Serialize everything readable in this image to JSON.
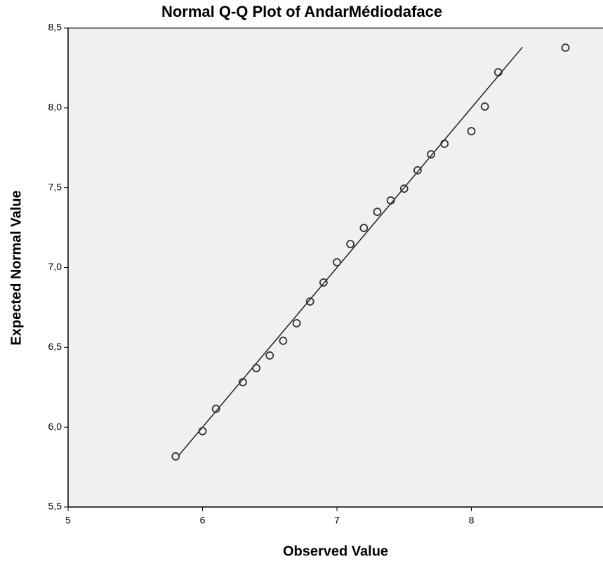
{
  "chart_data": {
    "type": "scatter",
    "title": "Normal Q-Q Plot of AndarMédiodaface",
    "x_label": "Observed Value",
    "y_label": "Expected Normal Value",
    "x": [
      5.8,
      6.0,
      6.1,
      6.3,
      6.4,
      6.5,
      6.6,
      6.7,
      6.8,
      6.9,
      7.0,
      7.1,
      7.2,
      7.3,
      7.4,
      7.5,
      7.6,
      7.7,
      7.8,
      8.0,
      8.1,
      8.2,
      8.7
    ],
    "values": [
      5.817,
      5.975,
      6.115,
      6.282,
      6.37,
      6.449,
      6.541,
      6.651,
      6.787,
      6.906,
      7.033,
      7.147,
      7.248,
      7.349,
      7.42,
      7.494,
      7.609,
      7.709,
      7.775,
      7.854,
      8.008,
      8.223,
      8.377
    ],
    "color": "#333333",
    "reference_line": {
      "x": [
        5.82,
        8.38
      ],
      "y": [
        5.82,
        8.38
      ],
      "color": "#222222"
    },
    "xlim": [
      5,
      9
    ],
    "ylim": [
      5.5,
      8.5
    ],
    "xticks": [
      5,
      6,
      7,
      8,
      9
    ],
    "yticks": [
      {
        "value": 5.5,
        "label": "5,5"
      },
      {
        "value": 6.0,
        "label": "6,0"
      },
      {
        "value": 6.5,
        "label": "6,5"
      },
      {
        "value": 7.0,
        "label": "7,0"
      },
      {
        "value": 7.5,
        "label": "7,5"
      },
      {
        "value": 8.0,
        "label": "8,0"
      },
      {
        "value": 8.5,
        "label": "8,5"
      }
    ],
    "background": "#f0f0f0"
  }
}
